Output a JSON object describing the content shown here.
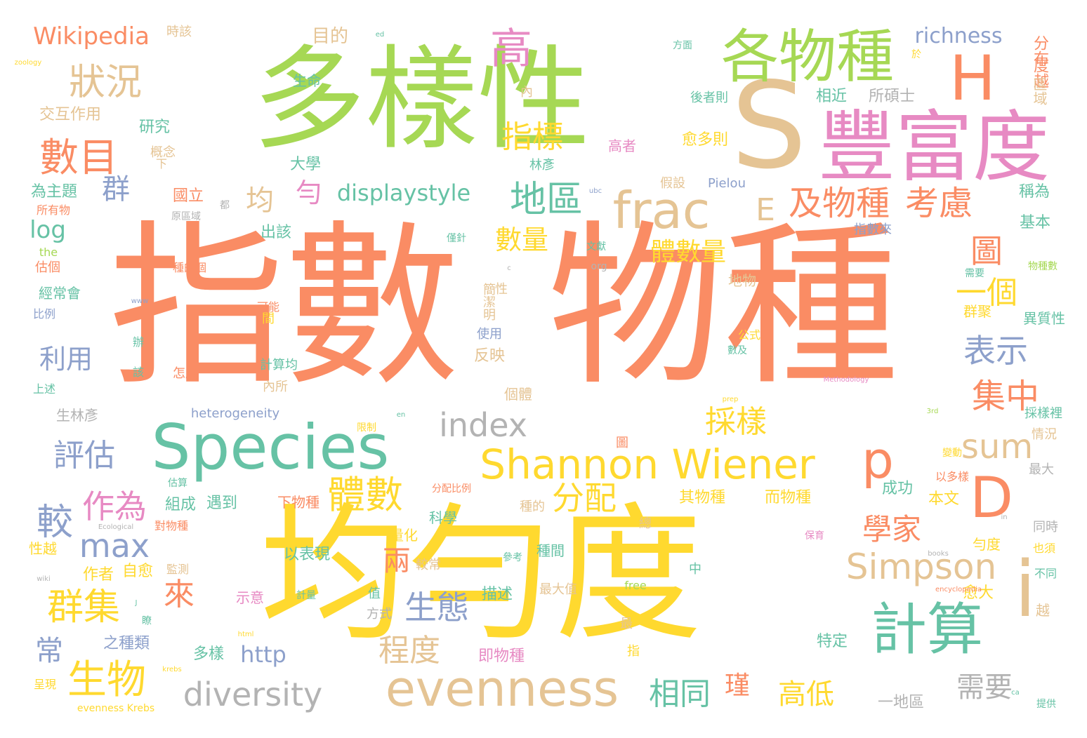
{
  "palette": {
    "orange": "#fa8c64",
    "green": "#a6d854",
    "yellow": "#ffd92f",
    "tan": "#e5c494",
    "pink": "#e78ac3",
    "teal": "#66c2a5",
    "blue": "#8da0cb",
    "gray": "#b3b3b3"
  },
  "words": [
    "指數",
    "物種",
    "均勻度",
    "多樣性",
    "S",
    "豐富度",
    "各物種",
    "H",
    "Species",
    "evenness",
    "Shannon Wiener",
    "計算",
    "i",
    "D",
    "p",
    "frac",
    "狀況",
    "數目",
    "高",
    "指標",
    "地區",
    "及物種",
    "考慮",
    "均",
    "勻",
    "displaystyle",
    "群",
    "E",
    "數量",
    "體數量",
    "圖",
    "一個",
    "表示",
    "sum",
    "index",
    "採樣",
    "集中",
    "體數",
    "分配",
    "學家",
    "Simpson",
    "較",
    "max",
    "作為",
    "利用",
    "評估",
    "群集",
    "生物",
    "來",
    "兩",
    "生態",
    "程度",
    "diversity",
    "http",
    "常",
    "相同",
    "瑾",
    "高低",
    "需要",
    "一地區",
    "Wikipedia",
    "時該",
    "目的",
    "richness",
    "分布",
    "度越",
    "區域",
    "生命",
    "交互作用",
    "研究",
    "概念",
    "大學",
    "國立",
    "為主題",
    "所有物",
    "log",
    "the",
    "估個",
    "經常會",
    "比例",
    "上述",
    "生林彥",
    "相近",
    "所碩士",
    "後者則",
    "愈多則",
    "高者",
    "林彥",
    "假設",
    "Pielou",
    "稱為",
    "基本",
    "指數來",
    "僅針",
    "文獻",
    "物種數",
    "需要",
    "異質性",
    "群聚",
    "可能",
    "公式",
    "數及",
    "使用",
    "反映",
    "個體",
    "遇到",
    "下物種",
    "組成",
    "對物種",
    "其物種",
    "而物種",
    "成功",
    "本文",
    "以多樣",
    "最大",
    "同時",
    "量化",
    "以表現",
    "種間",
    "勻度",
    "也須",
    "不同",
    "作者",
    "自愈",
    "監測",
    "示意",
    "計量",
    "描述",
    "最大值",
    "愈大",
    "之種類",
    "多樣",
    "即物種",
    "特定",
    "提供",
    "heterogeneity",
    "限制",
    "分配比例",
    "科學",
    "種的",
    "保育",
    "越",
    "free",
    "books",
    "encyclopedia",
    "Ecological",
    "evenness Krebs",
    "呈現",
    "wiki",
    "zoology",
    "方面",
    "於",
    "內",
    "出該",
    "地物",
    "怎麼",
    "計算均",
    "內所",
    "情況",
    "採樣裡",
    "變動",
    "參考",
    "較常",
    "中",
    "方式",
    "值",
    "估算",
    "性越",
    "都",
    "原區域",
    "ubc",
    "org",
    "prep",
    "Methodology",
    "ed",
    "www",
    "html",
    "krebs",
    "J",
    "en",
    "3rd",
    "c",
    "in",
    "ca",
    "間",
    "簡潔明",
    "下",
    "辦",
    "該",
    "性",
    "最",
    "指",
    "總",
    "種的個",
    "瞭",
    "圖"
  ]
}
